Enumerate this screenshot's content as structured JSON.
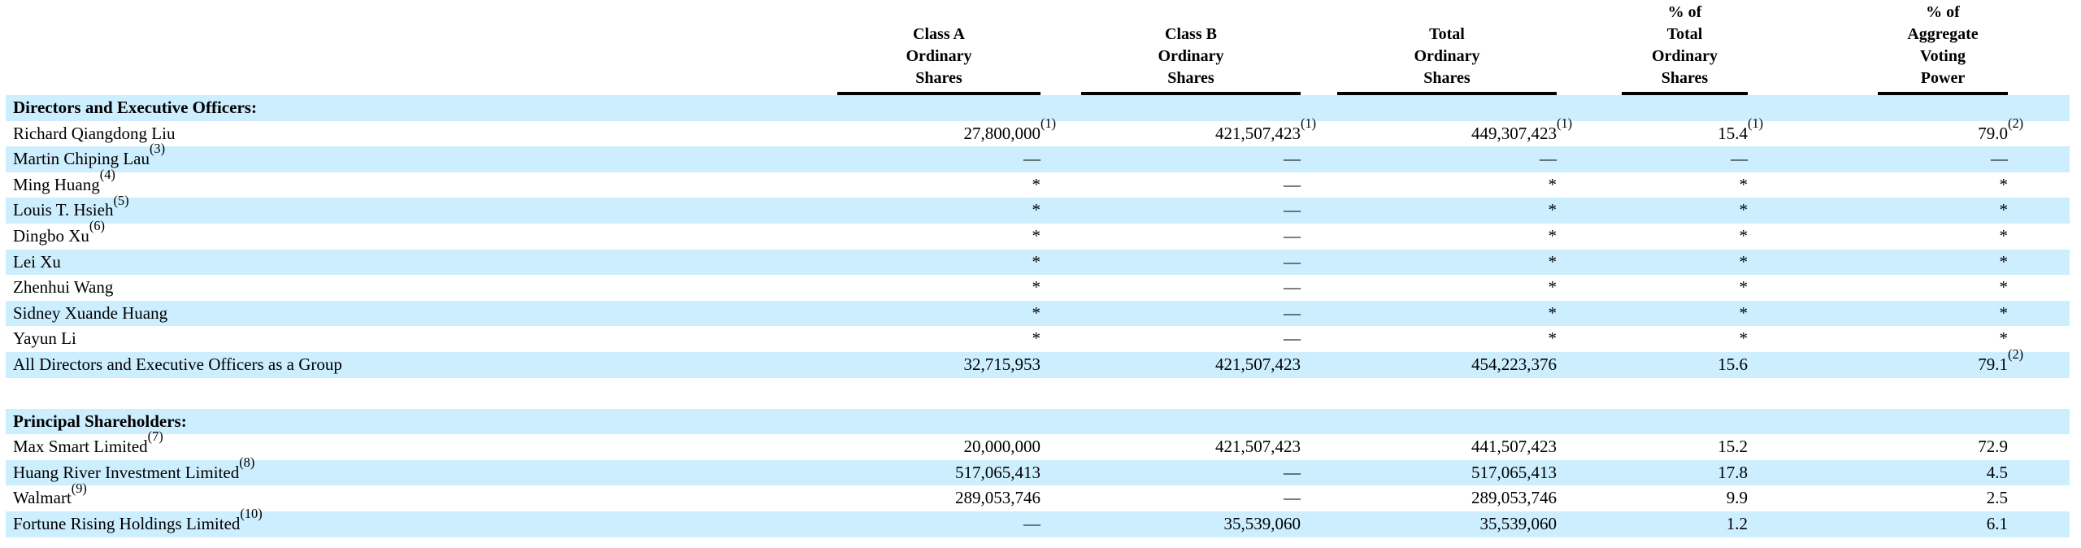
{
  "colors": {
    "row_shading": "#cceeff",
    "text": "#000000",
    "header_rule": "#000000",
    "background": "#ffffff"
  },
  "table": {
    "columns": [
      {
        "key": "class_a_shares",
        "label_lines": [
          "Class A",
          "Ordinary",
          "Shares"
        ]
      },
      {
        "key": "class_b_shares",
        "label_lines": [
          "Class B",
          "Ordinary",
          "Shares"
        ]
      },
      {
        "key": "total_shares",
        "label_lines": [
          "Total",
          "Ordinary",
          "Shares"
        ]
      },
      {
        "key": "pct_total_shares",
        "label_lines": [
          "% of",
          "Total",
          "Ordinary",
          "Shares"
        ]
      },
      {
        "key": "pct_voting_power",
        "label_lines": [
          "% of",
          "Aggregate",
          "Voting",
          "Power"
        ]
      }
    ],
    "rows": [
      {
        "type": "section",
        "shaded": true,
        "name": "Directors and Executive Officers:"
      },
      {
        "type": "data",
        "shaded": false,
        "name": "Richard Qiangdong Liu",
        "name_sup": "",
        "cells": [
          {
            "v": "27,800,000",
            "sup": "(1)"
          },
          {
            "v": "421,507,423",
            "sup": "(1)"
          },
          {
            "v": "449,307,423",
            "sup": "(1)"
          },
          {
            "v": "15.4",
            "sup": "(1)"
          },
          {
            "v": "79.0",
            "sup": "(2)"
          }
        ]
      },
      {
        "type": "data",
        "shaded": true,
        "name": "Martin Chiping Lau",
        "name_sup": "(3)",
        "cells": [
          {
            "v": "—",
            "sup": ""
          },
          {
            "v": "—",
            "sup": ""
          },
          {
            "v": "—",
            "sup": ""
          },
          {
            "v": "—",
            "sup": ""
          },
          {
            "v": "—",
            "sup": ""
          }
        ]
      },
      {
        "type": "data",
        "shaded": false,
        "name": "Ming Huang",
        "name_sup": "(4)",
        "cells": [
          {
            "v": "*",
            "sup": ""
          },
          {
            "v": "—",
            "sup": ""
          },
          {
            "v": "*",
            "sup": ""
          },
          {
            "v": "*",
            "sup": ""
          },
          {
            "v": "*",
            "sup": ""
          }
        ]
      },
      {
        "type": "data",
        "shaded": true,
        "name": "Louis T. Hsieh",
        "name_sup": "(5)",
        "cells": [
          {
            "v": "*",
            "sup": ""
          },
          {
            "v": "—",
            "sup": ""
          },
          {
            "v": "*",
            "sup": ""
          },
          {
            "v": "*",
            "sup": ""
          },
          {
            "v": "*",
            "sup": ""
          }
        ]
      },
      {
        "type": "data",
        "shaded": false,
        "name": "Dingbo Xu",
        "name_sup": "(6)",
        "cells": [
          {
            "v": "*",
            "sup": ""
          },
          {
            "v": "—",
            "sup": ""
          },
          {
            "v": "*",
            "sup": ""
          },
          {
            "v": "*",
            "sup": ""
          },
          {
            "v": "*",
            "sup": ""
          }
        ]
      },
      {
        "type": "data",
        "shaded": true,
        "name": "Lei Xu",
        "name_sup": "",
        "cells": [
          {
            "v": "*",
            "sup": ""
          },
          {
            "v": "—",
            "sup": ""
          },
          {
            "v": "*",
            "sup": ""
          },
          {
            "v": "*",
            "sup": ""
          },
          {
            "v": "*",
            "sup": ""
          }
        ]
      },
      {
        "type": "data",
        "shaded": false,
        "name": "Zhenhui Wang",
        "name_sup": "",
        "cells": [
          {
            "v": "*",
            "sup": ""
          },
          {
            "v": "—",
            "sup": ""
          },
          {
            "v": "*",
            "sup": ""
          },
          {
            "v": "*",
            "sup": ""
          },
          {
            "v": "*",
            "sup": ""
          }
        ]
      },
      {
        "type": "data",
        "shaded": true,
        "name": "Sidney Xuande Huang",
        "name_sup": "",
        "cells": [
          {
            "v": "*",
            "sup": ""
          },
          {
            "v": "—",
            "sup": ""
          },
          {
            "v": "*",
            "sup": ""
          },
          {
            "v": "*",
            "sup": ""
          },
          {
            "v": "*",
            "sup": ""
          }
        ]
      },
      {
        "type": "data",
        "shaded": false,
        "name": "Yayun Li",
        "name_sup": "",
        "cells": [
          {
            "v": "*",
            "sup": ""
          },
          {
            "v": "—",
            "sup": ""
          },
          {
            "v": "*",
            "sup": ""
          },
          {
            "v": "*",
            "sup": ""
          },
          {
            "v": "*",
            "sup": ""
          }
        ]
      },
      {
        "type": "data",
        "shaded": true,
        "name": "All Directors and Executive Officers as a Group",
        "name_sup": "",
        "cells": [
          {
            "v": "32,715,953",
            "sup": ""
          },
          {
            "v": "421,507,423",
            "sup": ""
          },
          {
            "v": "454,223,376",
            "sup": ""
          },
          {
            "v": "15.6",
            "sup": ""
          },
          {
            "v": "79.1",
            "sup": "(2)"
          }
        ]
      },
      {
        "type": "spacer"
      },
      {
        "type": "section",
        "shaded": true,
        "name": "Principal Shareholders:"
      },
      {
        "type": "data",
        "shaded": false,
        "name": "Max Smart Limited",
        "name_sup": "(7)",
        "cells": [
          {
            "v": "20,000,000",
            "sup": ""
          },
          {
            "v": "421,507,423",
            "sup": ""
          },
          {
            "v": "441,507,423",
            "sup": ""
          },
          {
            "v": "15.2",
            "sup": ""
          },
          {
            "v": "72.9",
            "sup": ""
          }
        ]
      },
      {
        "type": "data",
        "shaded": true,
        "name": "Huang River Investment Limited",
        "name_sup": "(8)",
        "cells": [
          {
            "v": "517,065,413",
            "sup": ""
          },
          {
            "v": "—",
            "sup": ""
          },
          {
            "v": "517,065,413",
            "sup": ""
          },
          {
            "v": "17.8",
            "sup": ""
          },
          {
            "v": "4.5",
            "sup": ""
          }
        ]
      },
      {
        "type": "data",
        "shaded": false,
        "name": "Walmart",
        "name_sup": "(9)",
        "cells": [
          {
            "v": "289,053,746",
            "sup": ""
          },
          {
            "v": "—",
            "sup": ""
          },
          {
            "v": "289,053,746",
            "sup": ""
          },
          {
            "v": "9.9",
            "sup": ""
          },
          {
            "v": "2.5",
            "sup": ""
          }
        ]
      },
      {
        "type": "data",
        "shaded": true,
        "name": "Fortune Rising Holdings Limited",
        "name_sup": "(10)",
        "cells": [
          {
            "v": "—",
            "sup": ""
          },
          {
            "v": "35,539,060",
            "sup": ""
          },
          {
            "v": "35,539,060",
            "sup": ""
          },
          {
            "v": "1.2",
            "sup": ""
          },
          {
            "v": "6.1",
            "sup": ""
          }
        ]
      }
    ]
  }
}
